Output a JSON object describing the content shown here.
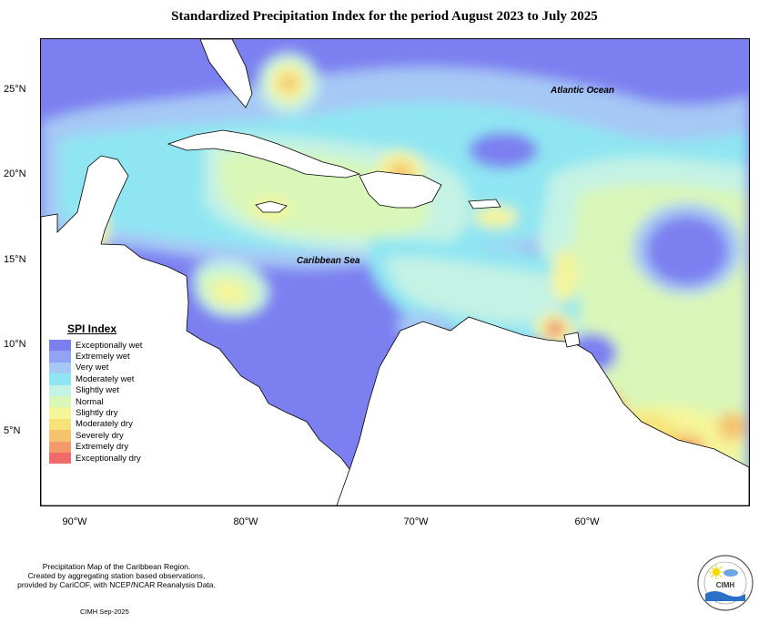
{
  "title": "Standardized Precipitation Index for the period August 2023 to July 2025",
  "lat_labels": [
    "25°N",
    "20°N",
    "15°N",
    "10°N",
    "5°N"
  ],
  "lon_labels": [
    "90°W",
    "80°W",
    "70°W",
    "60°W"
  ],
  "ocean_labels": {
    "atlantic": "Atlantic Ocean",
    "caribbean": "Caribbean Sea"
  },
  "legend": {
    "title": "SPI Index",
    "items": [
      {
        "label": "Exceptionally wet",
        "color": "#7b7ff0"
      },
      {
        "label": "Extremely wet",
        "color": "#93a3f4"
      },
      {
        "label": "Very wet",
        "color": "#a6c8f5"
      },
      {
        "label": "Moderately wet",
        "color": "#8fe6f2"
      },
      {
        "label": "Slightly wet",
        "color": "#c4f2e4"
      },
      {
        "label": "Normal",
        "color": "#d9f7b8"
      },
      {
        "label": "Slightly dry",
        "color": "#f5f59a"
      },
      {
        "label": "Moderately dry",
        "color": "#f7e37a"
      },
      {
        "label": "Severely dry",
        "color": "#f5c26e"
      },
      {
        "label": "Extremely dry",
        "color": "#f49a6a"
      },
      {
        "label": "Exceptionally dry",
        "color": "#ef6a6a"
      }
    ]
  },
  "footer": {
    "line1": "Precipitation Map of the Caribbean Region.",
    "line2": "Created by aggregating station based observations,",
    "line3": "provided by CariCOF, with NCEP/NCAR Reanalysis Data.",
    "credit": "CIMH Sep-2025"
  },
  "logo": {
    "text": "CIMH"
  }
}
